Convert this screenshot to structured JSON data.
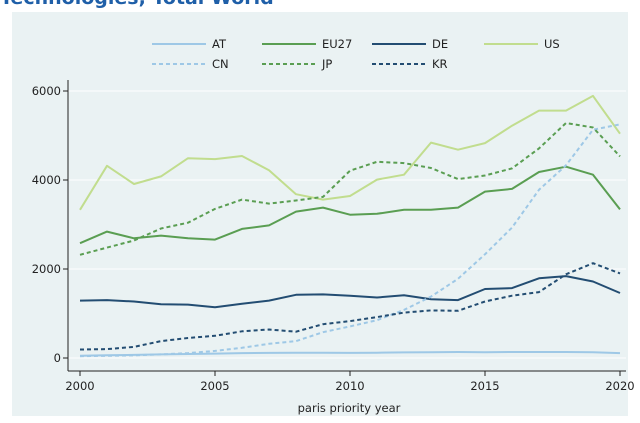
{
  "header": {
    "title": "Technologies, Total World"
  },
  "chart_data": {
    "type": "line",
    "title": "",
    "xlabel": "paris priority year",
    "ylabel": "",
    "xlim": [
      2000,
      2020
    ],
    "ylim": [
      0,
      6000
    ],
    "x_ticks": [
      "2000",
      "2005",
      "2010",
      "2015",
      "2020"
    ],
    "y_ticks": [
      "0",
      "2000",
      "4000",
      "6000"
    ],
    "grid": "horizontal",
    "legend_position": "top",
    "x": [
      2000,
      2001,
      2002,
      2003,
      2004,
      2005,
      2006,
      2007,
      2008,
      2009,
      2010,
      2011,
      2012,
      2013,
      2014,
      2015,
      2016,
      2017,
      2018,
      2019,
      2020
    ],
    "series": [
      {
        "name": "AT",
        "color": "#9ec8e6",
        "dash": "solid",
        "values": [
          50,
          60,
          70,
          80,
          90,
          100,
          110,
          115,
          120,
          120,
          115,
          120,
          125,
          130,
          135,
          130,
          135,
          135,
          135,
          130,
          110
        ]
      },
      {
        "name": "EU27",
        "color": "#5a9e52",
        "dash": "solid",
        "values": [
          2580,
          2840,
          2690,
          2750,
          2690,
          2660,
          2900,
          2980,
          3290,
          3380,
          3220,
          3240,
          3330,
          3330,
          3380,
          3740,
          3800,
          4180,
          4300,
          4120,
          3340
        ]
      },
      {
        "name": "DE",
        "color": "#234d72",
        "dash": "solid",
        "values": [
          1290,
          1300,
          1270,
          1210,
          1200,
          1140,
          1220,
          1290,
          1420,
          1430,
          1400,
          1360,
          1410,
          1320,
          1300,
          1550,
          1570,
          1790,
          1840,
          1720,
          1460
        ]
      },
      {
        "name": "US",
        "color": "#c1dd8e",
        "dash": "solid",
        "values": [
          3330,
          4320,
          3910,
          4080,
          4490,
          4470,
          4540,
          4220,
          3680,
          3560,
          3640,
          4010,
          4120,
          4840,
          4680,
          4830,
          5220,
          5560,
          5560,
          5890,
          5040
        ]
      },
      {
        "name": "CN",
        "color": "#9ec8e6",
        "dash": "dotted",
        "values": [
          40,
          50,
          60,
          80,
          110,
          160,
          230,
          320,
          380,
          580,
          710,
          850,
          1080,
          1380,
          1780,
          2330,
          2930,
          3780,
          4330,
          5130,
          5250
        ]
      },
      {
        "name": "JP",
        "color": "#5a9e52",
        "dash": "dotted",
        "values": [
          2320,
          2480,
          2640,
          2910,
          3040,
          3350,
          3560,
          3470,
          3540,
          3620,
          4210,
          4410,
          4380,
          4270,
          4020,
          4100,
          4260,
          4710,
          5280,
          5180,
          4530
        ]
      },
      {
        "name": "KR",
        "color": "#234d72",
        "dash": "dotted",
        "values": [
          190,
          200,
          250,
          380,
          450,
          500,
          600,
          640,
          590,
          760,
          830,
          920,
          1020,
          1070,
          1060,
          1270,
          1400,
          1480,
          1880,
          2130,
          1900
        ]
      }
    ]
  }
}
